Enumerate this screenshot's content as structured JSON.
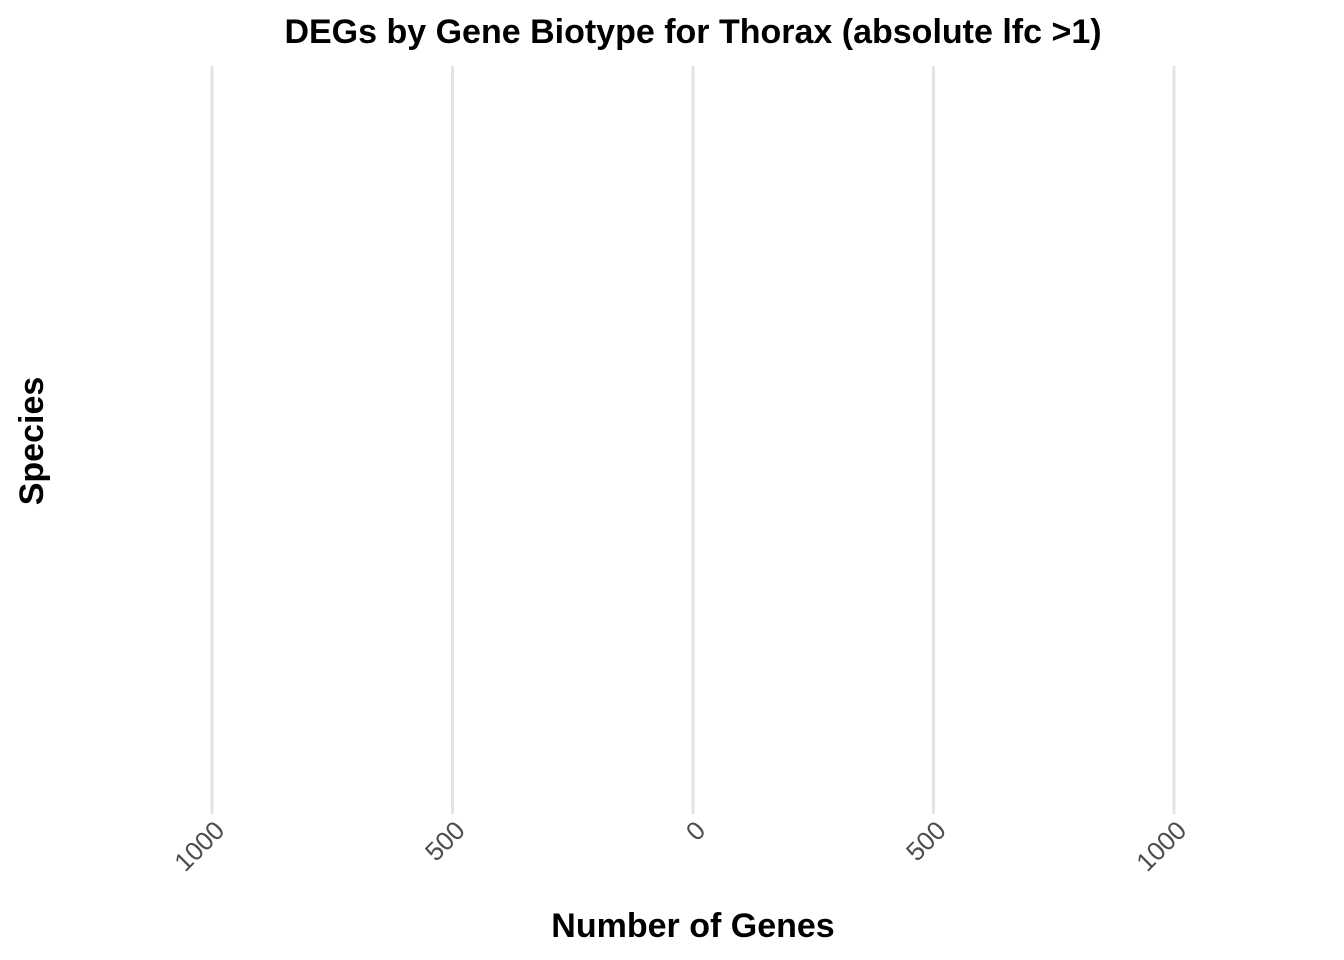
{
  "chart_data": {
    "type": "bar",
    "title": "DEGs by Gene Biotype for Thorax (absolute lfc >1)",
    "xlabel": "Number of Genes",
    "ylabel": "Species",
    "xlim": [
      -1000,
      1000
    ],
    "x_ticks": [
      -1000,
      -500,
      0,
      500,
      1000
    ],
    "x_tick_labels": [
      "1000",
      "500",
      "0",
      "500",
      "1000"
    ],
    "categories": [],
    "series": [],
    "grid": true,
    "legend": "none",
    "colors": {
      "grid": "#e3e3e3",
      "tick_text": "#4d4d4d",
      "text": "#000000"
    }
  }
}
